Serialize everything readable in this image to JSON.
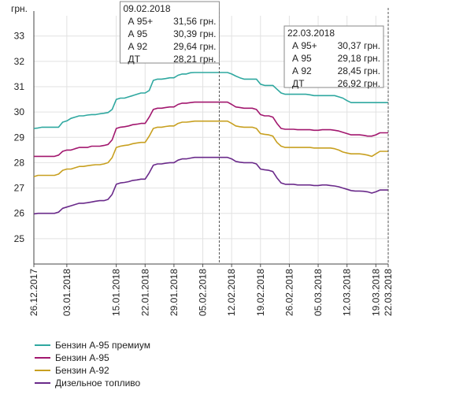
{
  "chart_data": {
    "type": "line",
    "ylabel": "грн.",
    "ylim": [
      24,
      33.8
    ],
    "yticks": [
      25,
      26,
      27,
      28,
      29,
      30,
      31,
      32,
      33
    ],
    "grid": true,
    "legend_position": "bottom-left",
    "x_tick_labels": [
      "26.12.2017",
      "03.01.2018",
      "15.01.2018",
      "22.01.2018",
      "29.01.2018",
      "05.02.2018",
      "12.02.2018",
      "19.02.2018",
      "26.02.2018",
      "05.03.2018",
      "12.03.2018",
      "19.03.2018",
      "22.03.2018"
    ],
    "x": [
      "2017-12-26",
      "2017-12-27",
      "2017-12-28",
      "2017-12-29",
      "2017-12-30",
      "2017-12-31",
      "2018-01-01",
      "2018-01-02",
      "2018-01-03",
      "2018-01-04",
      "2018-01-05",
      "2018-01-06",
      "2018-01-07",
      "2018-01-08",
      "2018-01-09",
      "2018-01-10",
      "2018-01-11",
      "2018-01-12",
      "2018-01-13",
      "2018-01-14",
      "2018-01-15",
      "2018-01-16",
      "2018-01-17",
      "2018-01-18",
      "2018-01-19",
      "2018-01-20",
      "2018-01-21",
      "2018-01-22",
      "2018-01-23",
      "2018-01-24",
      "2018-01-25",
      "2018-01-26",
      "2018-01-27",
      "2018-01-28",
      "2018-01-29",
      "2018-01-30",
      "2018-01-31",
      "2018-02-01",
      "2018-02-02",
      "2018-02-03",
      "2018-02-04",
      "2018-02-05",
      "2018-02-06",
      "2018-02-07",
      "2018-02-08",
      "2018-02-09",
      "2018-02-10",
      "2018-02-11",
      "2018-02-12",
      "2018-02-13",
      "2018-02-14",
      "2018-02-15",
      "2018-02-16",
      "2018-02-17",
      "2018-02-18",
      "2018-02-19",
      "2018-02-20",
      "2018-02-21",
      "2018-02-22",
      "2018-02-23",
      "2018-02-24",
      "2018-02-25",
      "2018-02-26",
      "2018-02-27",
      "2018-02-28",
      "2018-03-01",
      "2018-03-02",
      "2018-03-03",
      "2018-03-04",
      "2018-03-05",
      "2018-03-06",
      "2018-03-07",
      "2018-03-08",
      "2018-03-09",
      "2018-03-10",
      "2018-03-11",
      "2018-03-12",
      "2018-03-13",
      "2018-03-14",
      "2018-03-15",
      "2018-03-16",
      "2018-03-17",
      "2018-03-18",
      "2018-03-19",
      "2018-03-20",
      "2018-03-21",
      "2018-03-22"
    ],
    "series": [
      {
        "name": "Бензин А-95 премиум",
        "color": "#2fa8a0",
        "values": [
          29.35,
          29.37,
          29.4,
          29.4,
          29.4,
          29.4,
          29.4,
          29.6,
          29.65,
          29.75,
          29.8,
          29.85,
          29.85,
          29.88,
          29.9,
          29.9,
          29.93,
          29.95,
          29.98,
          30.1,
          30.5,
          30.55,
          30.55,
          30.6,
          30.65,
          30.7,
          30.75,
          30.75,
          30.85,
          31.25,
          31.3,
          31.3,
          31.32,
          31.35,
          31.35,
          31.45,
          31.5,
          31.5,
          31.55,
          31.56,
          31.56,
          31.56,
          31.56,
          31.56,
          31.56,
          31.56,
          31.56,
          31.56,
          31.5,
          31.42,
          31.35,
          31.3,
          31.3,
          31.3,
          31.3,
          31.1,
          31.05,
          31.05,
          31.05,
          30.9,
          30.75,
          30.7,
          30.7,
          30.7,
          30.7,
          30.7,
          30.7,
          30.68,
          30.65,
          30.65,
          30.65,
          30.65,
          30.65,
          30.65,
          30.6,
          30.55,
          30.45,
          30.37,
          30.37,
          30.37,
          30.37,
          30.37,
          30.37,
          30.37,
          30.37,
          30.37,
          30.37
        ]
      },
      {
        "name": "Бензин А-95",
        "color": "#a2176e",
        "values": [
          28.25,
          28.25,
          28.25,
          28.25,
          28.25,
          28.25,
          28.3,
          28.45,
          28.5,
          28.5,
          28.55,
          28.6,
          28.6,
          28.6,
          28.65,
          28.65,
          28.65,
          28.68,
          28.72,
          28.9,
          29.35,
          29.4,
          29.42,
          29.45,
          29.5,
          29.52,
          29.55,
          29.55,
          29.8,
          30.1,
          30.15,
          30.15,
          30.18,
          30.2,
          30.2,
          30.3,
          30.35,
          30.35,
          30.37,
          30.39,
          30.39,
          30.39,
          30.39,
          30.39,
          30.39,
          30.39,
          30.39,
          30.39,
          30.3,
          30.2,
          30.18,
          30.15,
          30.15,
          30.15,
          30.1,
          29.9,
          29.85,
          29.85,
          29.8,
          29.55,
          29.35,
          29.32,
          29.32,
          29.32,
          29.3,
          29.3,
          29.3,
          29.3,
          29.28,
          29.28,
          29.3,
          29.3,
          29.3,
          29.28,
          29.25,
          29.2,
          29.15,
          29.1,
          29.1,
          29.1,
          29.08,
          29.05,
          29.05,
          29.1,
          29.18,
          29.18,
          29.18
        ]
      },
      {
        "name": "Бензин А-92",
        "color": "#c8a020",
        "values": [
          27.45,
          27.5,
          27.5,
          27.5,
          27.5,
          27.5,
          27.55,
          27.7,
          27.75,
          27.75,
          27.8,
          27.85,
          27.85,
          27.88,
          27.9,
          27.92,
          27.92,
          27.95,
          28.0,
          28.2,
          28.6,
          28.65,
          28.68,
          28.7,
          28.75,
          28.78,
          28.8,
          28.8,
          29.05,
          29.35,
          29.4,
          29.4,
          29.43,
          29.45,
          29.45,
          29.55,
          29.6,
          29.6,
          29.62,
          29.64,
          29.64,
          29.64,
          29.64,
          29.64,
          29.64,
          29.64,
          29.64,
          29.64,
          29.55,
          29.45,
          29.42,
          29.4,
          29.4,
          29.4,
          29.35,
          29.15,
          29.12,
          29.1,
          29.05,
          28.8,
          28.65,
          28.6,
          28.6,
          28.6,
          28.6,
          28.6,
          28.6,
          28.6,
          28.58,
          28.58,
          28.58,
          28.58,
          28.58,
          28.55,
          28.5,
          28.42,
          28.38,
          28.35,
          28.35,
          28.35,
          28.33,
          28.3,
          28.25,
          28.35,
          28.45,
          28.45,
          28.45
        ]
      },
      {
        "name": "Дизельное топливо",
        "color": "#6a2a8a",
        "values": [
          25.98,
          26.0,
          26.0,
          26.0,
          26.0,
          26.0,
          26.05,
          26.2,
          26.25,
          26.3,
          26.35,
          26.4,
          26.4,
          26.42,
          26.45,
          26.48,
          26.5,
          26.5,
          26.55,
          26.75,
          27.15,
          27.2,
          27.22,
          27.25,
          27.3,
          27.32,
          27.35,
          27.35,
          27.6,
          27.9,
          27.95,
          27.95,
          27.98,
          28.0,
          28.0,
          28.1,
          28.15,
          28.15,
          28.18,
          28.21,
          28.21,
          28.21,
          28.21,
          28.21,
          28.21,
          28.21,
          28.21,
          28.21,
          28.15,
          28.05,
          28.02,
          28.0,
          28.0,
          28.0,
          27.95,
          27.75,
          27.72,
          27.7,
          27.65,
          27.4,
          27.2,
          27.15,
          27.15,
          27.15,
          27.12,
          27.12,
          27.12,
          27.12,
          27.1,
          27.1,
          27.12,
          27.12,
          27.1,
          27.08,
          27.05,
          27.0,
          26.95,
          26.9,
          26.88,
          26.88,
          26.87,
          26.85,
          26.8,
          26.85,
          26.92,
          26.92,
          26.92
        ]
      }
    ],
    "tooltips": [
      {
        "date": "09.02.2018",
        "x": "2018-02-09",
        "rows": [
          {
            "label": "А 95+",
            "value": "31,56 грн."
          },
          {
            "label": "А 95",
            "value": "30,39 грн."
          },
          {
            "label": "А 92",
            "value": "29,64 грн."
          },
          {
            "label": "ДТ",
            "value": "28,21 грн."
          }
        ]
      },
      {
        "date": "22.03.2018",
        "x": "2018-03-22",
        "rows": [
          {
            "label": "А 95+",
            "value": "30,37 грн."
          },
          {
            "label": "А 95",
            "value": "29,18 грн."
          },
          {
            "label": "А 92",
            "value": "28,45 грн."
          },
          {
            "label": "ДТ",
            "value": "26,92 грн."
          }
        ]
      }
    ]
  }
}
